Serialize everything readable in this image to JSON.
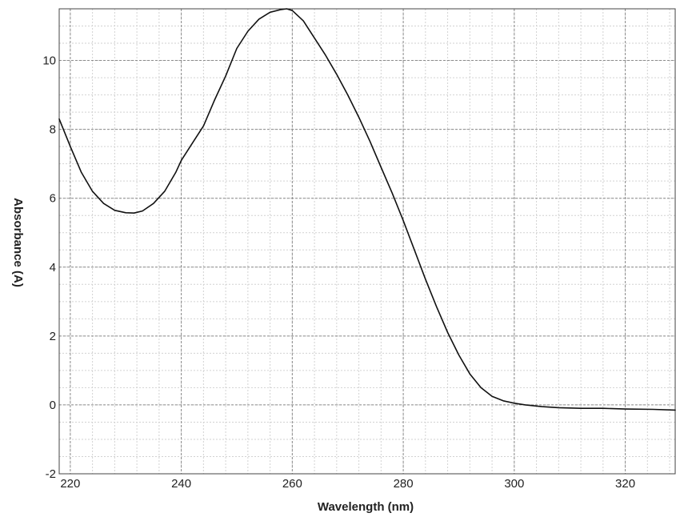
{
  "chart_data": {
    "type": "line",
    "title": "",
    "xlabel": "Wavelength (nm)",
    "ylabel": "Absorbance (A)",
    "xlim": [
      218,
      329
    ],
    "ylim": [
      -2,
      11.5
    ],
    "x_ticks": [
      220,
      240,
      260,
      280,
      300,
      320
    ],
    "y_ticks": [
      -2,
      0,
      2,
      4,
      6,
      8,
      10
    ],
    "x_tick_labels": [
      "220",
      "240",
      "260",
      "280",
      "300",
      "320"
    ],
    "y_tick_labels": [
      "-2",
      "0",
      "2",
      "4",
      "6",
      "8",
      "10"
    ],
    "grid": true,
    "minor_grid": true,
    "legend": "none",
    "colors": {
      "line": "#111111",
      "major_grid": "#8c8c8c",
      "minor_grid": "#d2d2d2",
      "frame": "#444444"
    },
    "series": [
      {
        "x": [
          218,
          220,
          222,
          224,
          226,
          228,
          230,
          231.5,
          233,
          235,
          237,
          239,
          240,
          242,
          244,
          246,
          248,
          250,
          252,
          254,
          256,
          258,
          259,
          260,
          262,
          264,
          266,
          268,
          270,
          272,
          274,
          276,
          278,
          280,
          282,
          284,
          286,
          288,
          290,
          292,
          294,
          296,
          298,
          300,
          302,
          305,
          308,
          312,
          316,
          320,
          325,
          329
        ],
        "y": [
          8.3,
          7.5,
          6.75,
          6.2,
          5.85,
          5.65,
          5.58,
          5.57,
          5.63,
          5.85,
          6.2,
          6.75,
          7.1,
          7.6,
          8.1,
          8.85,
          9.55,
          10.35,
          10.85,
          11.2,
          11.4,
          11.48,
          11.5,
          11.45,
          11.15,
          10.65,
          10.15,
          9.6,
          9.0,
          8.35,
          7.65,
          6.9,
          6.15,
          5.35,
          4.5,
          3.65,
          2.85,
          2.1,
          1.45,
          0.9,
          0.5,
          0.25,
          0.12,
          0.05,
          0.0,
          -0.05,
          -0.08,
          -0.1,
          -0.1,
          -0.12,
          -0.13,
          -0.15
        ]
      }
    ]
  }
}
